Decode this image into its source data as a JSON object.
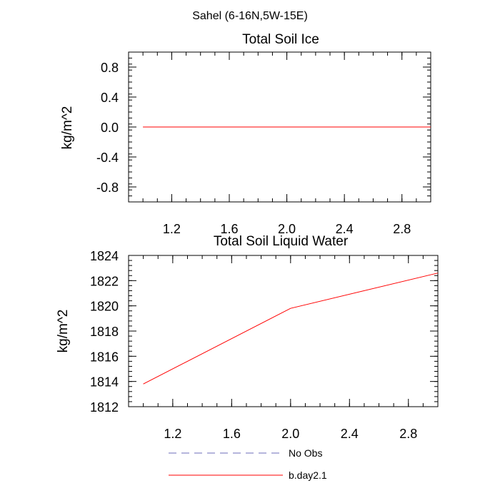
{
  "suptitle": "Sahel (6-16N,5W-15E)",
  "chart_data": [
    {
      "type": "line",
      "title": "Total Soil Ice",
      "xlabel": "",
      "ylabel": "kg/m^2",
      "xlim": [
        0.9,
        3.0
      ],
      "ylim": [
        -1.0,
        1.0
      ],
      "xticks": [
        1.2,
        1.6,
        2.0,
        2.4,
        2.8
      ],
      "xtick_labels": [
        "1.2",
        "1.6",
        "2.0",
        "2.4",
        "2.8"
      ],
      "yticks": [
        -0.8,
        -0.4,
        0.0,
        0.4,
        0.8
      ],
      "ytick_labels": [
        "-0.8",
        "-0.4",
        "0.0",
        "0.4",
        "0.8"
      ],
      "series": [
        {
          "name": "b.day2.1",
          "color": "#ff0000",
          "x": [
            1,
            2,
            3
          ],
          "y": [
            0.0,
            0.0,
            0.0
          ]
        }
      ]
    },
    {
      "type": "line",
      "title": "Total Soil Liquid Water",
      "xlabel": "",
      "ylabel": "kg/m^2",
      "xlim": [
        0.9,
        3.0
      ],
      "ylim": [
        1812,
        1824
      ],
      "xticks": [
        1.2,
        1.6,
        2.0,
        2.4,
        2.8
      ],
      "xtick_labels": [
        "1.2",
        "1.6",
        "2.0",
        "2.4",
        "2.8"
      ],
      "yticks": [
        1812,
        1814,
        1816,
        1818,
        1820,
        1822,
        1824
      ],
      "ytick_labels": [
        "1812",
        "1814",
        "1816",
        "1818",
        "1820",
        "1822",
        "1824"
      ],
      "series": [
        {
          "name": "b.day2.1",
          "color": "#ff0000",
          "x": [
            1,
            2,
            3
          ],
          "y": [
            1813.8,
            1819.8,
            1822.6
          ]
        }
      ]
    }
  ],
  "legend": {
    "placement": "bottom",
    "items": [
      {
        "label": "No Obs",
        "color": "#6b6bb8",
        "style": "dashed"
      },
      {
        "label": "b.day2.1",
        "color": "#ff0000",
        "style": "solid"
      }
    ]
  }
}
